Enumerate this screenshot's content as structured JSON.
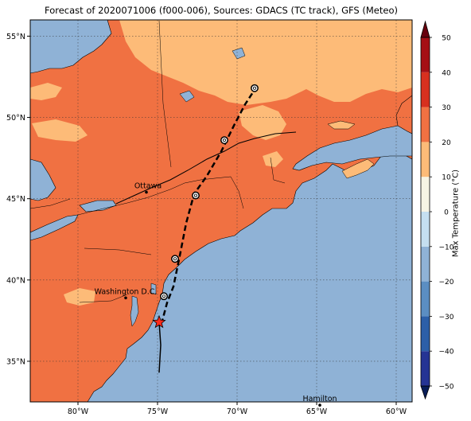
{
  "title": "Forecast of 2020071006 (f000-006), Sources: GDACS (TC track), GFS (Meteo)",
  "map": {
    "lon_range": [
      -83,
      -59
    ],
    "lat_range": [
      32.5,
      56
    ],
    "lon_ticks": [
      {
        "value": -80,
        "label": "80°W"
      },
      {
        "value": -75,
        "label": "75°W"
      },
      {
        "value": -70,
        "label": "70°W"
      },
      {
        "value": -65,
        "label": "65°W"
      },
      {
        "value": -60,
        "label": "60°W"
      }
    ],
    "lat_ticks": [
      {
        "value": 35,
        "label": "35°N"
      },
      {
        "value": 40,
        "label": "40°N"
      },
      {
        "value": 45,
        "label": "45°N"
      },
      {
        "value": 50,
        "label": "50°N"
      },
      {
        "value": 55,
        "label": "55°N"
      }
    ],
    "gridlines": true,
    "colors": {
      "ocean": "#8fb2d6",
      "land_warm": "#f07142",
      "land_mild": "#fdbb78",
      "track": "#000000",
      "storm_marker": "#ff2a1a"
    },
    "cities": [
      {
        "name": "Ottawa",
        "lon": -75.7,
        "lat": 45.4
      },
      {
        "name": "Washington D.C.",
        "lon": -77.0,
        "lat": 38.9
      },
      {
        "name": "Hamilton",
        "lon": -64.8,
        "lat": 32.3
      }
    ],
    "storm_track": [
      {
        "lon": -74.9,
        "lat": 34.3
      },
      {
        "lon": -74.8,
        "lat": 36.0
      },
      {
        "lon": -74.7,
        "lat": 37.5
      },
      {
        "lon": -74.4,
        "lat": 38.6
      },
      {
        "lon": -74.0,
        "lat": 39.6
      },
      {
        "lon": -73.6,
        "lat": 41.5
      },
      {
        "lon": -73.2,
        "lat": 43.5
      },
      {
        "lon": -72.7,
        "lat": 45.3
      },
      {
        "lon": -71.9,
        "lat": 46.4
      },
      {
        "lon": -71.0,
        "lat": 47.9
      },
      {
        "lon": -70.2,
        "lat": 49.5
      },
      {
        "lon": -69.5,
        "lat": 50.8
      },
      {
        "lon": -68.9,
        "lat": 51.7
      }
    ],
    "storm_current": {
      "lon": -74.9,
      "lat": 37.4
    },
    "forecast_points": [
      {
        "lon": -74.6,
        "lat": 39.0
      },
      {
        "lon": -73.9,
        "lat": 41.3
      },
      {
        "lon": -72.6,
        "lat": 45.2
      },
      {
        "lon": -70.8,
        "lat": 48.6
      },
      {
        "lon": -68.9,
        "lat": 51.8
      }
    ]
  },
  "colorbar": {
    "label": "Max Temperature (°C)",
    "ticks": [
      -50,
      -40,
      -30,
      -20,
      -10,
      0,
      10,
      20,
      30,
      40,
      50
    ],
    "levels": [
      {
        "from": -55,
        "to": -50,
        "color": "#081d58"
      },
      {
        "from": -50,
        "to": -40,
        "color": "#253494"
      },
      {
        "from": -40,
        "to": -30,
        "color": "#2c5fa8"
      },
      {
        "from": -30,
        "to": -20,
        "color": "#5b8ec2"
      },
      {
        "from": -20,
        "to": -10,
        "color": "#8fb2d6"
      },
      {
        "from": -10,
        "to": 0,
        "color": "#c5dff0"
      },
      {
        "from": 0,
        "to": 10,
        "color": "#f7f4e4"
      },
      {
        "from": 10,
        "to": 20,
        "color": "#fdbb78"
      },
      {
        "from": 20,
        "to": 30,
        "color": "#f07142"
      },
      {
        "from": 30,
        "to": 40,
        "color": "#d7301f"
      },
      {
        "from": 40,
        "to": 50,
        "color": "#a50f15"
      },
      {
        "from": 50,
        "to": 55,
        "color": "#67000d"
      }
    ]
  }
}
